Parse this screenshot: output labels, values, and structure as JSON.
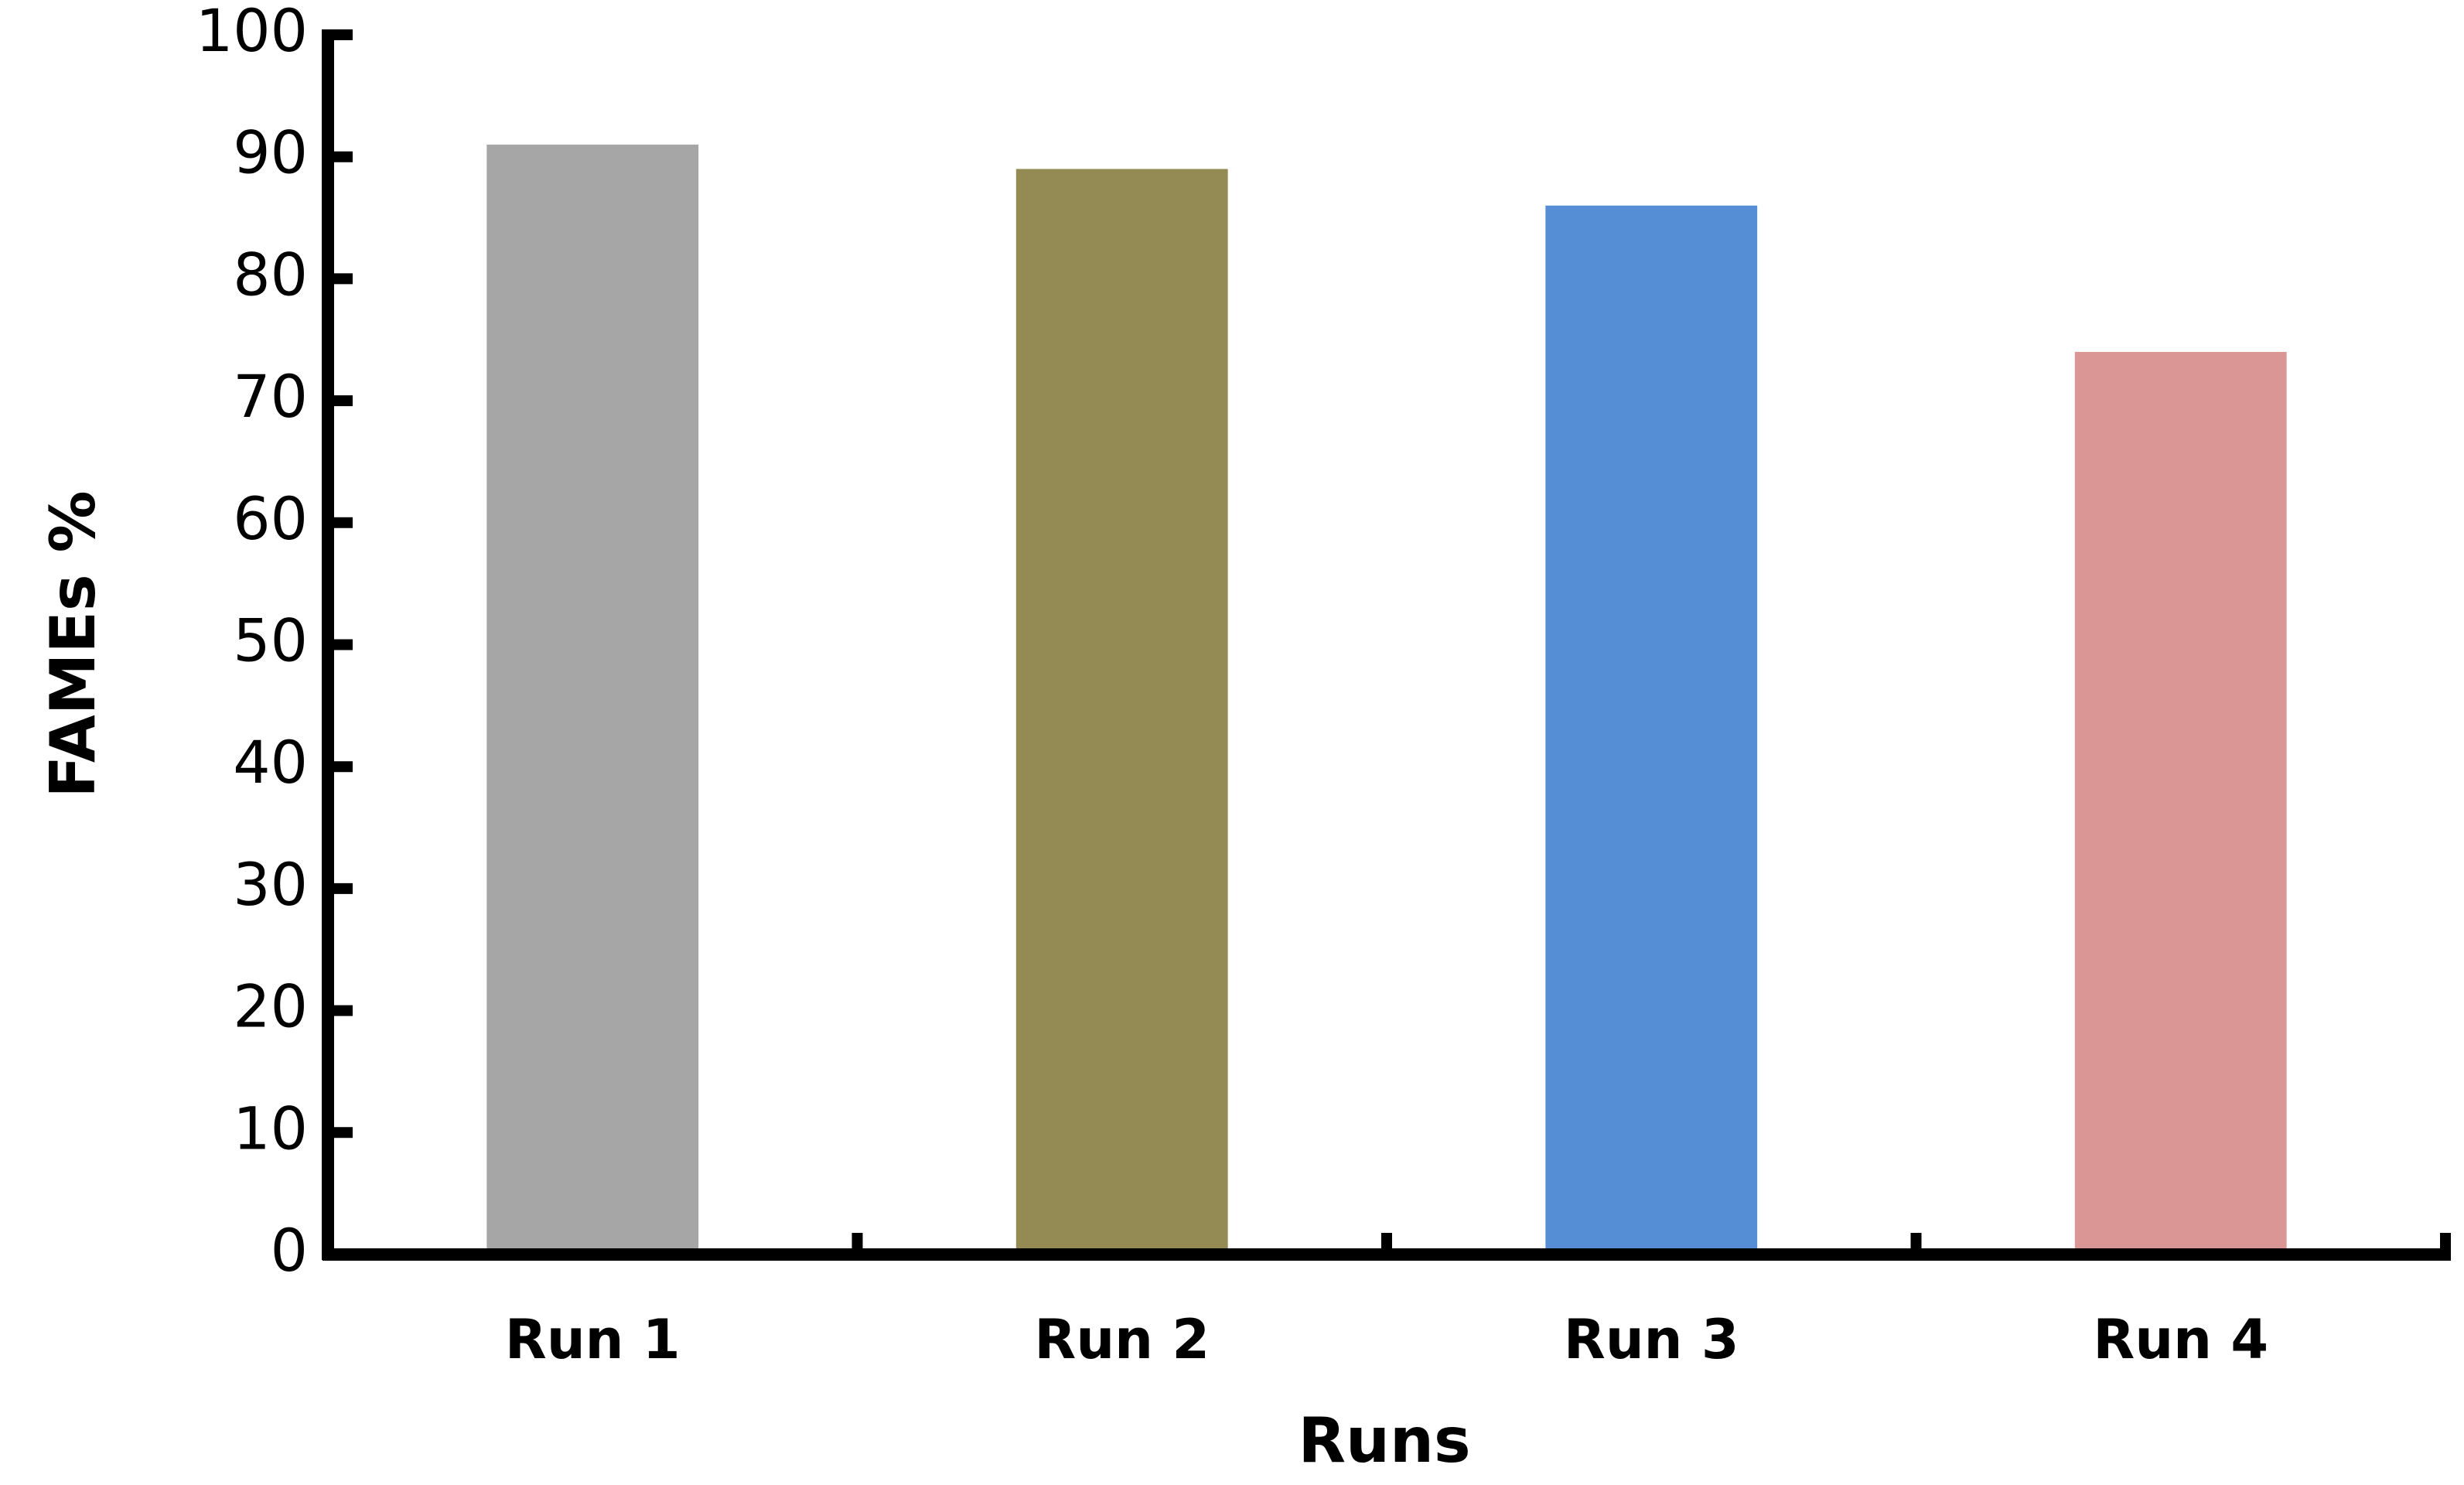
{
  "chart_data": {
    "type": "bar",
    "x_label": "Runs",
    "y_label": "FAMEs %",
    "categories": [
      "Run 1",
      "Run 2",
      "Run 3",
      "Run 4"
    ],
    "values": [
      91,
      89,
      86,
      74
    ],
    "colors": [
      "#a6a6a6",
      "#948a54",
      "#558ed5",
      "#d99694"
    ],
    "ylim": [
      0,
      100
    ],
    "yticks": [
      0,
      10,
      20,
      30,
      40,
      50,
      60,
      70,
      80,
      90,
      100
    ],
    "grid": false
  }
}
